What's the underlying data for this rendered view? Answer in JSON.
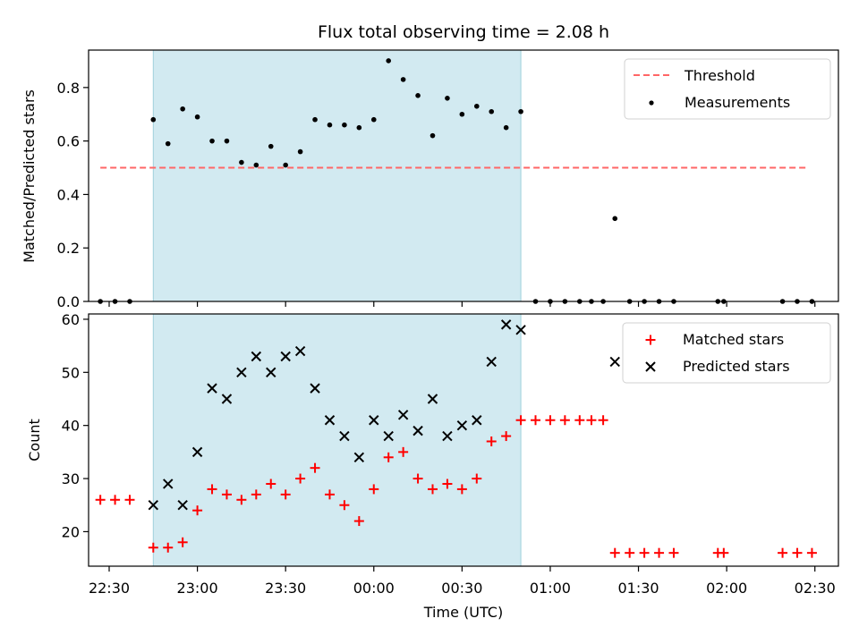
{
  "chart_data": [
    {
      "type": "scatter",
      "title": "Flux total observing time = 2.08 h",
      "ylabel": "Matched/Predicted stars",
      "ylim": [
        0,
        0.94
      ],
      "yticks": [
        0.0,
        0.2,
        0.4,
        0.6,
        0.8
      ],
      "ytick_labels": [
        "0.0",
        "0.2",
        "0.4",
        "0.6",
        "0.8"
      ],
      "x_time_range": [
        "22:23",
        "02:38"
      ],
      "shaded_region": {
        "start": "22:45",
        "end": "00:50",
        "color": "#add8e6"
      },
      "legend_position": "top-right",
      "series": [
        {
          "name": "Threshold",
          "style": "dashed-line",
          "color": "#ff6666",
          "x": [
            "22:27",
            "02:27"
          ],
          "y": [
            0.5,
            0.5
          ]
        },
        {
          "name": "Measurements",
          "style": "dots",
          "color": "#000000",
          "x": [
            "22:27",
            "22:32",
            "22:37",
            "22:45",
            "22:50",
            "22:55",
            "23:00",
            "23:05",
            "23:10",
            "23:15",
            "23:20",
            "23:25",
            "23:30",
            "23:35",
            "23:40",
            "23:45",
            "23:50",
            "23:55",
            "00:00",
            "00:05",
            "00:10",
            "00:15",
            "00:20",
            "00:25",
            "00:30",
            "00:35",
            "00:40",
            "00:45",
            "00:50",
            "00:55",
            "01:00",
            "01:05",
            "01:10",
            "01:14",
            "01:18",
            "01:22",
            "01:27",
            "01:32",
            "01:37",
            "01:42",
            "01:57",
            "01:59",
            "02:19",
            "02:24",
            "02:29"
          ],
          "y": [
            0,
            0,
            0,
            0.68,
            0.59,
            0.72,
            0.69,
            0.6,
            0.6,
            0.52,
            0.51,
            0.58,
            0.51,
            0.56,
            0.68,
            0.66,
            0.66,
            0.65,
            0.68,
            0.9,
            0.83,
            0.77,
            0.62,
            0.76,
            0.7,
            0.73,
            0.71,
            0.65,
            0.71,
            0,
            0,
            0,
            0,
            0,
            0,
            0.31,
            0,
            0,
            0,
            0,
            0,
            0,
            0,
            0,
            0
          ]
        }
      ]
    },
    {
      "type": "scatter",
      "xlabel": "Time (UTC)",
      "ylabel": "Count",
      "ylim": [
        13.5,
        61
      ],
      "yticks": [
        20,
        30,
        40,
        50,
        60
      ],
      "ytick_labels": [
        "20",
        "30",
        "40",
        "50",
        "60"
      ],
      "xticks": [
        "22:30",
        "23:00",
        "23:30",
        "00:00",
        "00:30",
        "01:00",
        "01:30",
        "02:00",
        "02:30"
      ],
      "shaded_region": {
        "start": "22:45",
        "end": "00:50",
        "color": "#add8e6"
      },
      "legend_position": "top-right",
      "series": [
        {
          "name": "Matched stars",
          "marker": "plus",
          "color": "#ff0000",
          "x": [
            "22:27",
            "22:32",
            "22:37",
            "22:45",
            "22:50",
            "22:55",
            "23:00",
            "23:05",
            "23:10",
            "23:15",
            "23:20",
            "23:25",
            "23:30",
            "23:35",
            "23:40",
            "23:45",
            "23:50",
            "23:55",
            "00:00",
            "00:05",
            "00:10",
            "00:15",
            "00:20",
            "00:25",
            "00:30",
            "00:35",
            "00:40",
            "00:45",
            "00:50",
            "00:55",
            "01:00",
            "01:05",
            "01:10",
            "01:14",
            "01:18",
            "01:22",
            "01:27",
            "01:32",
            "01:37",
            "01:42",
            "01:57",
            "01:59",
            "02:19",
            "02:24",
            "02:29"
          ],
          "y": [
            26,
            26,
            26,
            17,
            17,
            18,
            24,
            28,
            27,
            26,
            27,
            29,
            27,
            30,
            32,
            27,
            25,
            22,
            28,
            34,
            35,
            30,
            28,
            29,
            28,
            30,
            37,
            38,
            41,
            41,
            41,
            41,
            41,
            41,
            41,
            16,
            16,
            16,
            16,
            16,
            16,
            16,
            16,
            16,
            16
          ]
        },
        {
          "name": "Predicted stars",
          "marker": "x",
          "color": "#000000",
          "x": [
            "22:45",
            "22:50",
            "22:55",
            "23:00",
            "23:05",
            "23:10",
            "23:15",
            "23:20",
            "23:25",
            "23:30",
            "23:35",
            "23:40",
            "23:45",
            "23:50",
            "23:55",
            "00:00",
            "00:05",
            "00:10",
            "00:15",
            "00:20",
            "00:25",
            "00:30",
            "00:35",
            "00:40",
            "00:45",
            "00:50",
            "01:22"
          ],
          "y": [
            25,
            29,
            25,
            35,
            47,
            45,
            50,
            53,
            50,
            53,
            54,
            47,
            41,
            38,
            34,
            41,
            38,
            42,
            39,
            45,
            38,
            40,
            41,
            52,
            59,
            58,
            52
          ]
        }
      ]
    }
  ]
}
